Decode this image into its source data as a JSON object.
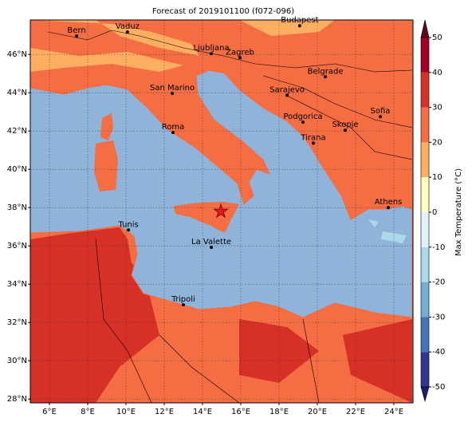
{
  "title": "Forecast of 2019101100 (f072-096)",
  "map": {
    "lon_range": [
      5,
      25
    ],
    "lat_range": [
      27.8,
      47.8
    ],
    "lon_ticks": [
      {
        "value": 6,
        "label": "6°E"
      },
      {
        "value": 8,
        "label": "8°E"
      },
      {
        "value": 10,
        "label": "10°E"
      },
      {
        "value": 12,
        "label": "12°E"
      },
      {
        "value": 14,
        "label": "14°E"
      },
      {
        "value": 16,
        "label": "16°E"
      },
      {
        "value": 18,
        "label": "18°E"
      },
      {
        "value": 20,
        "label": "20°E"
      },
      {
        "value": 22,
        "label": "22°E"
      },
      {
        "value": 24,
        "label": "24°E"
      }
    ],
    "lat_ticks": [
      {
        "value": 28,
        "label": "28°N"
      },
      {
        "value": 30,
        "label": "30°N"
      },
      {
        "value": 32,
        "label": "32°N"
      },
      {
        "value": 34,
        "label": "34°N"
      },
      {
        "value": 36,
        "label": "36°N"
      },
      {
        "value": 38,
        "label": "38°N"
      },
      {
        "value": 40,
        "label": "40°N"
      },
      {
        "value": 42,
        "label": "42°N"
      },
      {
        "value": 44,
        "label": "44°N"
      },
      {
        "value": 46,
        "label": "46°N"
      }
    ],
    "cities": [
      {
        "name": "Bern",
        "lon": 7.42,
        "lat": 46.96
      },
      {
        "name": "Vaduz",
        "lon": 10.08,
        "lat": 47.17
      },
      {
        "name": "Budapest",
        "lon": 19.08,
        "lat": 47.5
      },
      {
        "name": "Ljubljana",
        "lon": 14.46,
        "lat": 46.04
      },
      {
        "name": "Zagreb",
        "lon": 15.96,
        "lat": 45.83
      },
      {
        "name": "Belgrade",
        "lon": 20.42,
        "lat": 44.83
      },
      {
        "name": "San Marino",
        "lon": 12.42,
        "lat": 43.96
      },
      {
        "name": "Sarajevo",
        "lon": 18.42,
        "lat": 43.87
      },
      {
        "name": "Sofia",
        "lon": 23.29,
        "lat": 42.75
      },
      {
        "name": "Podgorica",
        "lon": 19.25,
        "lat": 42.46
      },
      {
        "name": "Skopje",
        "lon": 21.46,
        "lat": 42.04
      },
      {
        "name": "Roma",
        "lon": 12.46,
        "lat": 41.92
      },
      {
        "name": "Tirana",
        "lon": 19.79,
        "lat": 41.37
      },
      {
        "name": "Athens",
        "lon": 23.71,
        "lat": 38.0
      },
      {
        "name": "Tunis",
        "lon": 10.13,
        "lat": 36.83
      },
      {
        "name": "La Valette",
        "lon": 14.46,
        "lat": 35.92
      },
      {
        "name": "Tripoli",
        "lon": 13.0,
        "lat": 32.92
      }
    ],
    "star": {
      "lon": 14.96,
      "lat": 37.8
    }
  },
  "colorbar": {
    "label": "Max Temperature (°C)",
    "ticks": [
      50,
      40,
      30,
      20,
      10,
      0,
      -10,
      -20,
      -30,
      -40,
      -50
    ],
    "colors": [
      "#313695",
      "#4575b4",
      "#74add1",
      "#abd9e9",
      "#e0f3f8",
      "#ffffbf",
      "#fdae61",
      "#f46d43",
      "#d73027",
      "#a50026"
    ],
    "under_color": "#1c1c70",
    "over_color": "#67001f"
  }
}
